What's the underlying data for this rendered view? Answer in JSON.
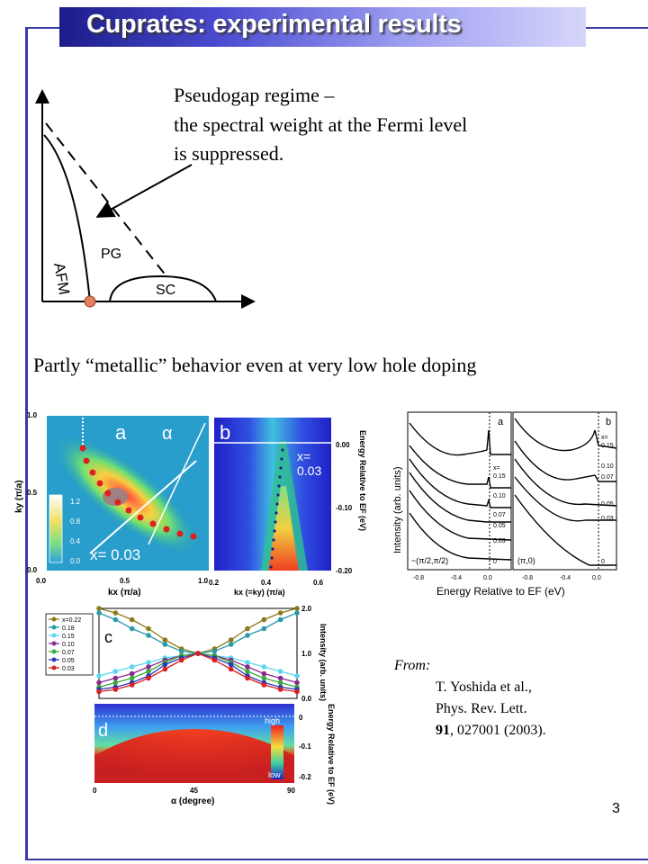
{
  "slide": {
    "title": "Cuprates: experimental results",
    "page_number": "3"
  },
  "phase_diagram": {
    "description_lines": [
      "Pseudogap regime –",
      "the spectral weight at the Fermi level",
      "is suppressed."
    ],
    "labels": {
      "afm": "AFM",
      "pg": "PG",
      "sc": "SC"
    },
    "colors": {
      "dot": "#e08060",
      "arrow": "#000000"
    }
  },
  "subtitle": "Partly “metallic” behavior even at very low hole doping",
  "arpes_maps": {
    "panel_a": {
      "label": "a",
      "alpha": "α",
      "doping": "x= 0.03",
      "x_axis": {
        "label": "kx (π/a)",
        "ticks": [
          "0.0",
          "0.5",
          "1.0"
        ]
      },
      "y_axis": {
        "label": "ky (π/a)",
        "ticks": [
          "0.0",
          "0.5",
          "1.0"
        ]
      },
      "colorbar_ticks": [
        "1.2",
        "0.8",
        "0.4",
        "0.0"
      ]
    },
    "panel_b": {
      "label": "b",
      "doping_prefix": "x=",
      "doping_value": "0.03",
      "x_axis": {
        "label": "kx (=ky) (π/a)",
        "ticks": [
          "0.2",
          "0.4",
          "0.6"
        ]
      },
      "y_axis": {
        "label": "Energy Relative to EF (eV)",
        "ticks": [
          "0.00",
          "-0.10",
          "-0.20"
        ]
      }
    }
  },
  "edc_spectra": {
    "y_label": "Intensity (arb. units)",
    "x_label": "Energy Relative to EF (eV)",
    "x_ticks_left": [
      "-0.8",
      "-0.4",
      "0.0"
    ],
    "x_ticks_right": [
      "-0.8",
      "-0.4",
      "0.0"
    ],
    "panel_a": {
      "label": "a",
      "k_point": "~(π/2,π/2)",
      "x_header": "x=",
      "dopings": [
        "0.15",
        "0.10",
        "0.07",
        "0.05",
        "0.03",
        "0"
      ]
    },
    "panel_b": {
      "label": "b",
      "k_point": "(π,0)",
      "x_header": "x=",
      "dopings": [
        "0.15",
        "0.10",
        "0.07",
        "0.05",
        "0.03",
        "0"
      ]
    }
  },
  "chart_data": [
    {
      "type": "line",
      "panel": "c",
      "ylabel": "Intensity (arb. units)",
      "x": [
        0,
        7.5,
        15,
        22.5,
        30,
        37.5,
        45,
        52.5,
        60,
        67.5,
        75,
        82.5,
        90
      ],
      "ylim": [
        0.0,
        2.0
      ],
      "y_ticks": [
        "0.0",
        "1.0",
        "2.0"
      ],
      "series": [
        {
          "name": "x=0.22",
          "color": "#8a7a1a",
          "values": [
            2.0,
            1.9,
            1.75,
            1.55,
            1.3,
            1.1,
            1.0,
            1.1,
            1.3,
            1.55,
            1.75,
            1.9,
            2.0
          ]
        },
        {
          "name": "0.18",
          "color": "#2a9aaa",
          "values": [
            1.9,
            1.75,
            1.55,
            1.4,
            1.2,
            1.05,
            1.0,
            1.05,
            1.2,
            1.4,
            1.55,
            1.75,
            1.9
          ]
        },
        {
          "name": "0.15",
          "color": "#5ad8f0",
          "values": [
            0.5,
            0.6,
            0.7,
            0.8,
            0.9,
            0.95,
            1.0,
            0.95,
            0.9,
            0.8,
            0.7,
            0.6,
            0.5
          ]
        },
        {
          "name": "0.10",
          "color": "#8a2a8a",
          "values": [
            0.35,
            0.45,
            0.55,
            0.7,
            0.85,
            0.95,
            1.0,
            0.95,
            0.85,
            0.7,
            0.55,
            0.45,
            0.35
          ]
        },
        {
          "name": "0.07",
          "color": "#3aaa3a",
          "values": [
            0.25,
            0.35,
            0.45,
            0.6,
            0.8,
            0.95,
            1.0,
            0.95,
            0.8,
            0.6,
            0.45,
            0.35,
            0.25
          ]
        },
        {
          "name": "0.05",
          "color": "#2a3ab8",
          "values": [
            0.2,
            0.25,
            0.35,
            0.5,
            0.75,
            0.9,
            1.0,
            0.9,
            0.75,
            0.5,
            0.35,
            0.25,
            0.2
          ]
        },
        {
          "name": "0.03",
          "color": "#d82020",
          "values": [
            0.15,
            0.2,
            0.3,
            0.45,
            0.65,
            0.85,
            1.0,
            0.85,
            0.65,
            0.45,
            0.3,
            0.2,
            0.15
          ]
        }
      ]
    },
    {
      "type": "heatmap",
      "panel": "d",
      "xlabel": "α (degree)",
      "x_ticks": [
        "0",
        "45",
        "90"
      ],
      "ylabel": "Energy Relative to EF (eV)",
      "y_ticks": [
        "0",
        "-0.1",
        "-0.2"
      ],
      "colorbar": {
        "high": "high",
        "low": "low"
      }
    }
  ],
  "citation": {
    "from": "From:",
    "authors": "T. Yoshida et al.,",
    "journal": "Phys. Rev. Lett.",
    "volume": "91",
    "rest": ", 027001 (2003)."
  },
  "panel_c_label": "c",
  "panel_d_label": "d"
}
